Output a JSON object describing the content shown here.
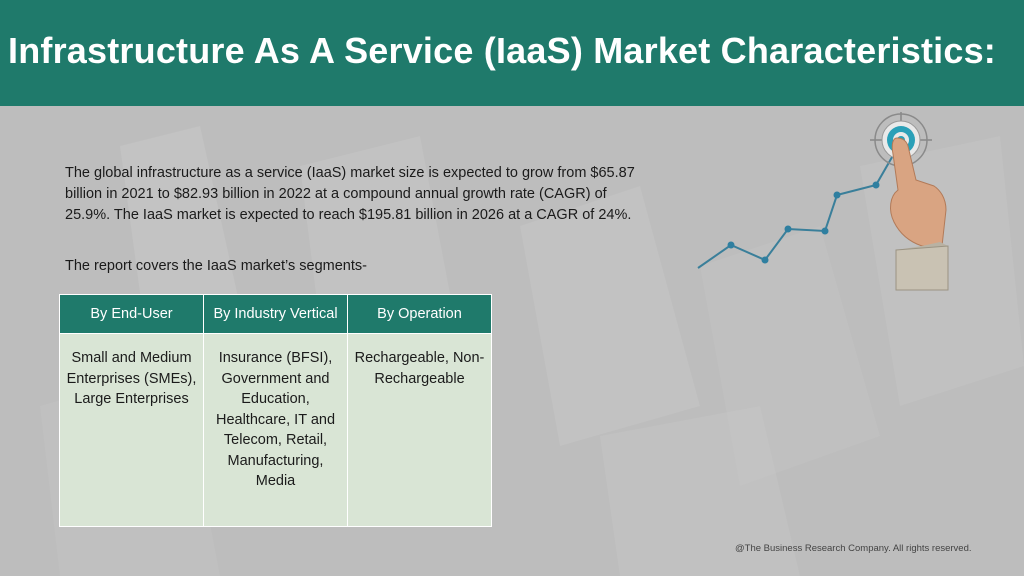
{
  "header": {
    "title": "Infrastructure As A Service (IaaS) Market Characteristics:"
  },
  "intro": {
    "text": "The global infrastructure as a service (IaaS) market size is expected to grow from $65.87 billion in 2021 to $82.93 billion in 2022 at a compound annual growth rate (CAGR) of 25.9%. The IaaS market is expected to reach $195.81 billion in 2026 at a CAGR of 24%."
  },
  "segments_intro": "The report covers the IaaS market’s segments-",
  "table": {
    "headers": [
      "By End-User",
      "By Industry Vertical",
      "By Operation"
    ],
    "cells": [
      "Small and Medium Enterprises (SMEs), Large Enterprises",
      "Insurance (BFSI), Government and Education, Healthcare, IT and Telecom, Retail, Manufacturing, Media",
      "Rechargeable, Non-Rechargeable"
    ]
  },
  "footer": "@The Business Research Company. All rights reserved.",
  "colors": {
    "header_bg": "#1f7a6b",
    "table_header": "#1f7a6b",
    "table_body": "#d9e5d5",
    "accent_line": "#3a7f9a"
  }
}
